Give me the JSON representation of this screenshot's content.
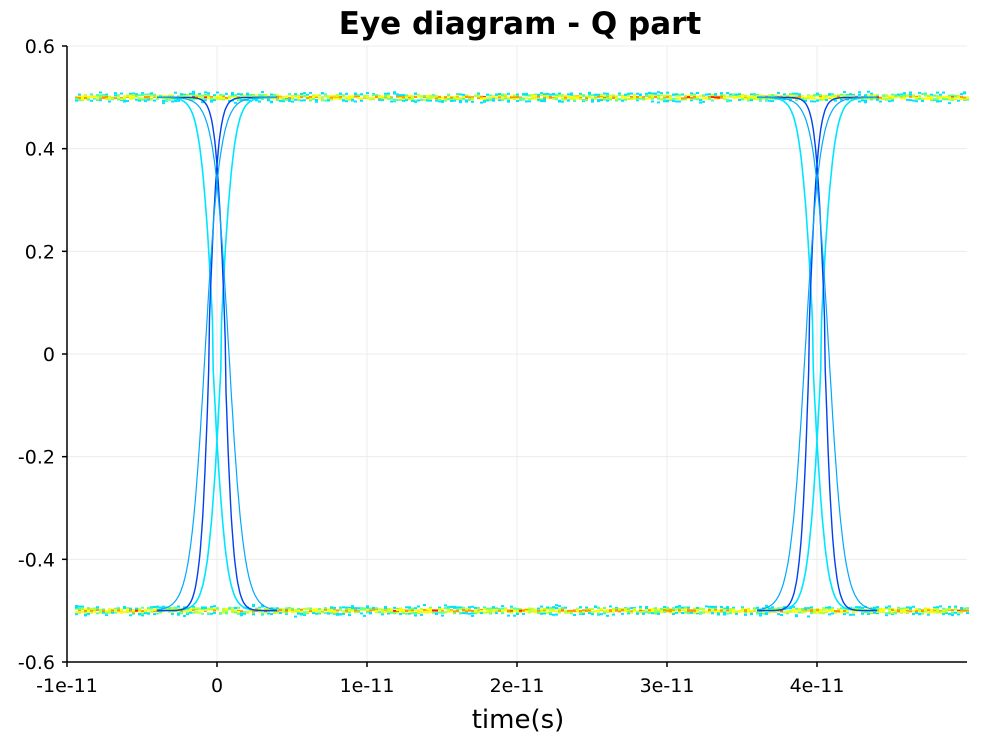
{
  "chart_data": {
    "type": "line",
    "title": "Eye diagram - Q part",
    "xlabel": "time(s)",
    "ylabel": "",
    "xlim": [
      -1e-11,
      5e-11
    ],
    "ylim": [
      -0.6,
      0.6
    ],
    "grid": true,
    "legend": "none",
    "x_ticks": [
      {
        "value": -1e-11,
        "label": "-1e-11"
      },
      {
        "value": 0,
        "label": "0"
      },
      {
        "value": 1e-11,
        "label": "1e-11"
      },
      {
        "value": 2e-11,
        "label": "2e-11"
      },
      {
        "value": 3e-11,
        "label": "3e-11"
      },
      {
        "value": 4e-11,
        "label": "4e-11"
      }
    ],
    "y_ticks": [
      {
        "value": 0.6,
        "label": "0.6"
      },
      {
        "value": 0.4,
        "label": "0.4"
      },
      {
        "value": 0.2,
        "label": "0.2"
      },
      {
        "value": 0,
        "label": "0"
      },
      {
        "value": -0.2,
        "label": "-0.2"
      },
      {
        "value": -0.4,
        "label": "-0.4"
      },
      {
        "value": -0.6,
        "label": "-0.6"
      }
    ],
    "levels": [
      0.5,
      -0.5
    ],
    "transition_times": [
      0,
      4e-11
    ],
    "overshoot": 0.035,
    "colormap": [
      "#0000ff",
      "#0050ff",
      "#00a0ff",
      "#00e5ff",
      "#60ff90",
      "#c0ff30",
      "#ffff00",
      "#ff9900",
      "#ff2000"
    ],
    "colors": {
      "grid": "#ececec",
      "axis": "#000000",
      "rise_trace": "#00e5ff",
      "fall_trace": "#0040ee",
      "settle_trace": "#00a8ff"
    }
  }
}
